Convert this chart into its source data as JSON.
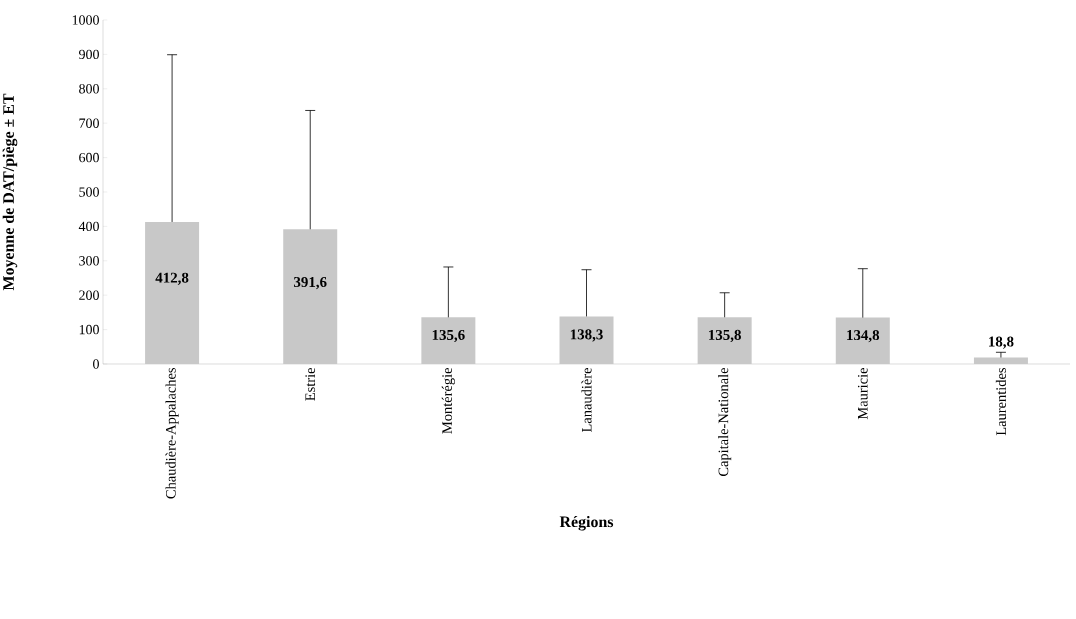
{
  "chart_data": {
    "type": "bar",
    "xlabel": "Régions",
    "ylabel": "Moyenne de DAT/piège ± ET",
    "categories": [
      "Chaudière-Appalaches",
      "Estrie",
      "Montérégie",
      "Lanaudière",
      "Capitale-Nationale",
      "Mauricie",
      "Laurentides"
    ],
    "values": [
      412.8,
      391.6,
      135.6,
      138.3,
      135.8,
      134.8,
      18.8
    ],
    "value_labels": [
      "412,8",
      "391,6",
      "135,6",
      "138,3",
      "135,8",
      "134,8",
      "18,8"
    ],
    "errors": [
      [
        412.8,
        899
      ],
      [
        391.6,
        737
      ],
      [
        135.6,
        282
      ],
      [
        138.3,
        274
      ],
      [
        135.8,
        207
      ],
      [
        134.8,
        277
      ],
      [
        18.8,
        34
      ]
    ],
    "color": "#c8c8c8",
    "ylim": [
      0,
      1000
    ],
    "yticks": [
      0,
      100,
      200,
      300,
      400,
      500,
      600,
      700,
      800,
      900,
      1000
    ],
    "grid": false
  }
}
